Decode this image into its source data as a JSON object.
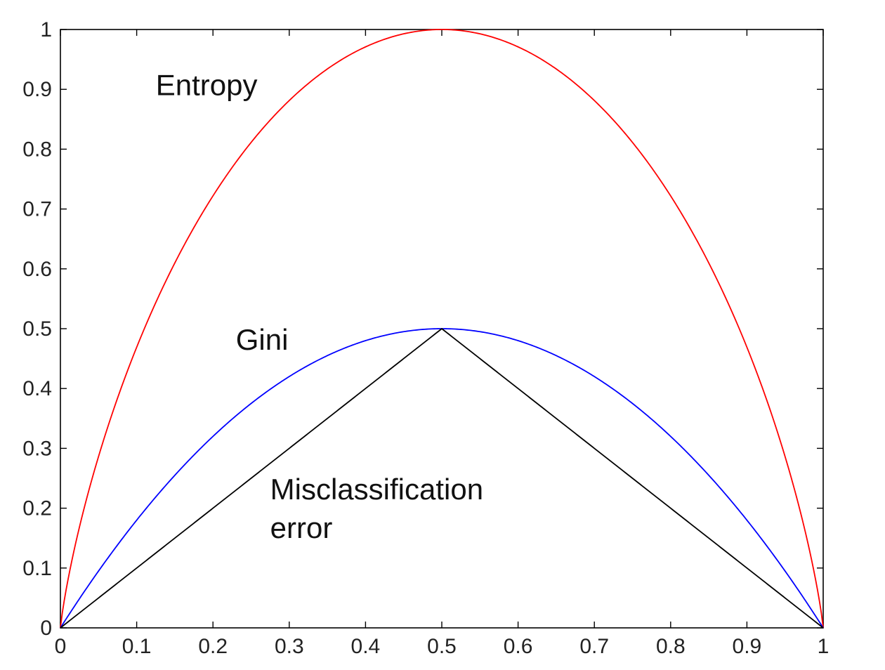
{
  "chart_data": {
    "type": "line",
    "title": "",
    "xlabel": "",
    "ylabel": "",
    "xlim": [
      0,
      1
    ],
    "ylim": [
      0,
      1
    ],
    "grid": false,
    "x_ticks": [
      "0",
      "0.1",
      "0.2",
      "0.3",
      "0.4",
      "0.5",
      "0.6",
      "0.7",
      "0.8",
      "0.9",
      "1"
    ],
    "y_ticks": [
      "0",
      "0.1",
      "0.2",
      "0.3",
      "0.4",
      "0.5",
      "0.6",
      "0.7",
      "0.8",
      "0.9",
      "1"
    ],
    "x": [
      0,
      0.01,
      0.05,
      0.1,
      0.15,
      0.2,
      0.25,
      0.3,
      0.35,
      0.4,
      0.45,
      0.5,
      0.55,
      0.6,
      0.65,
      0.7,
      0.75,
      0.8,
      0.85,
      0.9,
      0.95,
      0.99,
      1
    ],
    "series": [
      {
        "key": "entropy",
        "color": "#ff0000",
        "values": [
          0,
          0.081,
          0.286,
          0.469,
          0.61,
          0.722,
          0.811,
          0.881,
          0.934,
          0.971,
          0.993,
          1,
          0.993,
          0.971,
          0.934,
          0.881,
          0.811,
          0.722,
          0.61,
          0.469,
          0.286,
          0.081,
          0
        ]
      },
      {
        "key": "gini",
        "color": "#0000ff",
        "values": [
          0,
          0.0198,
          0.095,
          0.18,
          0.255,
          0.32,
          0.375,
          0.42,
          0.455,
          0.48,
          0.495,
          0.5,
          0.495,
          0.48,
          0.455,
          0.42,
          0.375,
          0.32,
          0.255,
          0.18,
          0.095,
          0.0198,
          0
        ]
      },
      {
        "key": "misclassification",
        "color": "#000000",
        "values": [
          0,
          0.01,
          0.05,
          0.1,
          0.15,
          0.2,
          0.25,
          0.3,
          0.35,
          0.4,
          0.45,
          0.5,
          0.45,
          0.4,
          0.35,
          0.3,
          0.25,
          0.2,
          0.15,
          0.1,
          0.05,
          0.01,
          0
        ]
      }
    ],
    "annotations": [
      {
        "text": "Entropy",
        "x": 0.125,
        "y": 0.89
      },
      {
        "text": "Gini",
        "x": 0.23,
        "y": 0.465
      },
      {
        "text": "Misclassification",
        "x": 0.275,
        "y": 0.215
      },
      {
        "text": "error",
        "x": 0.275,
        "y": 0.15
      }
    ]
  }
}
